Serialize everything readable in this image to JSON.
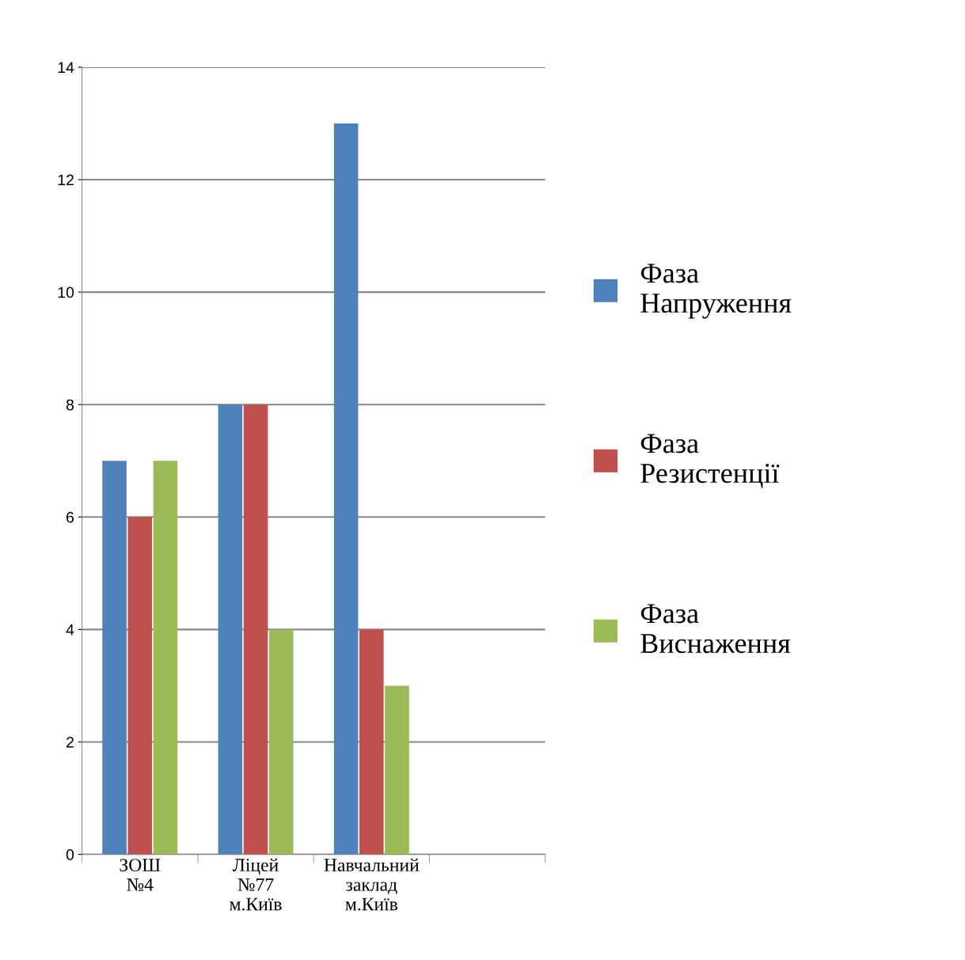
{
  "chart_data": {
    "type": "bar",
    "categories": [
      "ЗОШ №4",
      "Ліцей №77 м.Київ",
      "Навчальний заклад м.Київ",
      null
    ],
    "series": [
      {
        "name": "Фаза Напруження",
        "color": "#4f81bd",
        "values": [
          7,
          8,
          13,
          null
        ]
      },
      {
        "name": "Фаза Резистенції",
        "color": "#c0504d",
        "values": [
          6,
          8,
          4,
          null
        ]
      },
      {
        "name": "Фаза Виснаження",
        "color": "#9bbb59",
        "values": [
          7,
          4,
          3,
          null
        ]
      }
    ],
    "ylim": [
      0,
      14
    ],
    "yticks": [
      0,
      2,
      4,
      6,
      8,
      10,
      12,
      14
    ],
    "grid": "y",
    "legend": "right"
  }
}
